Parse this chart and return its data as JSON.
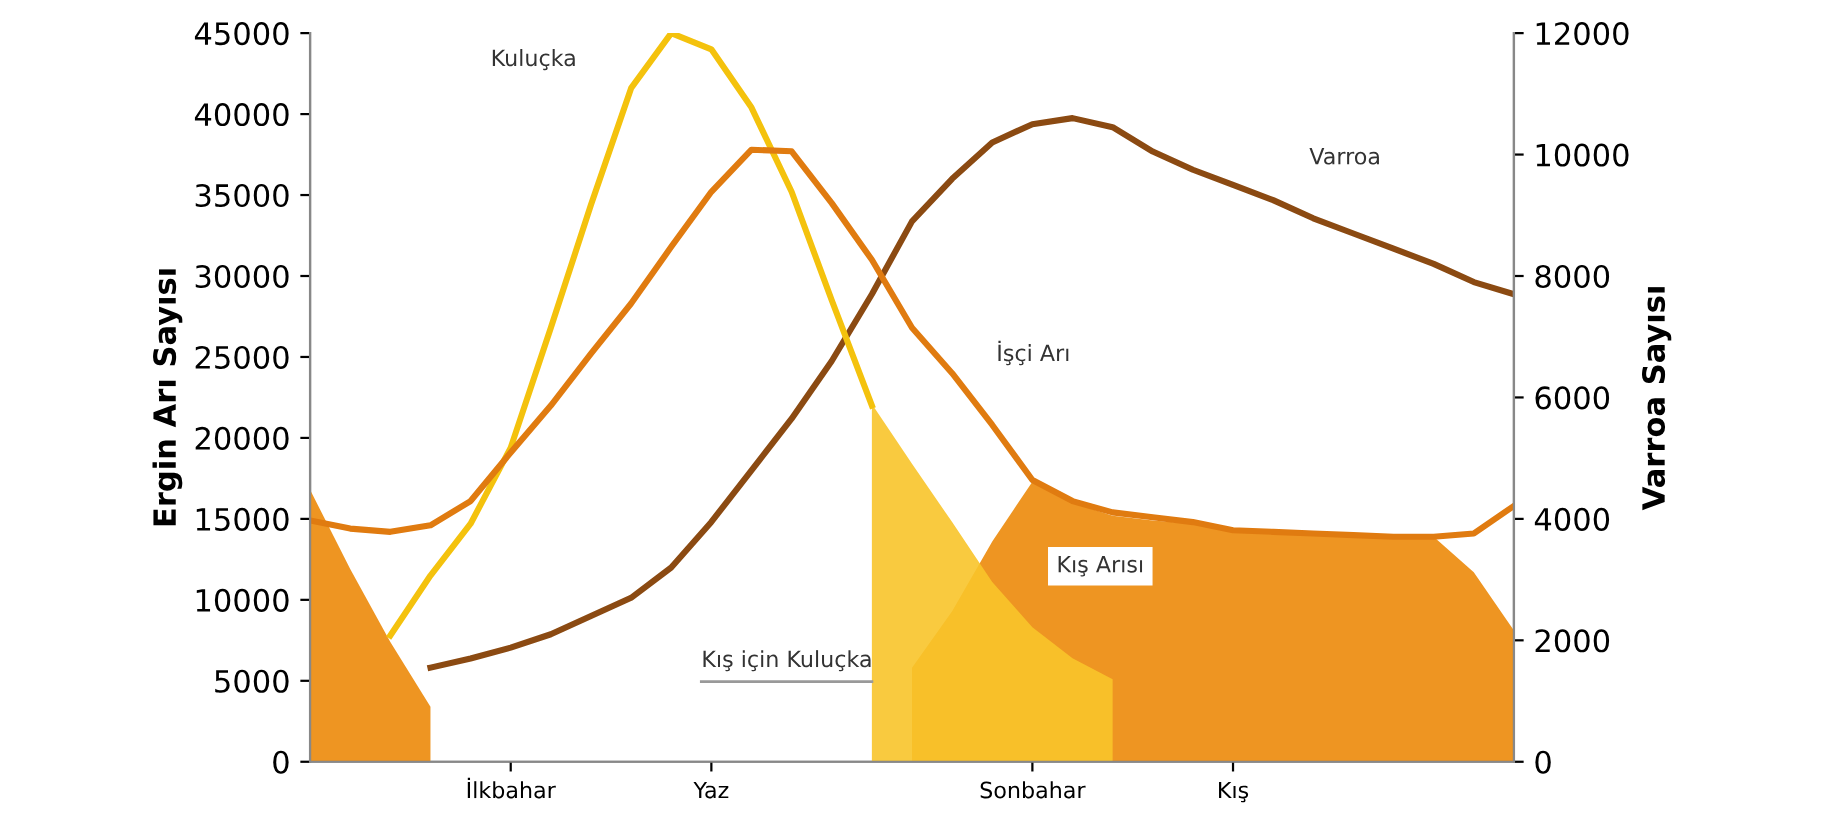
{
  "chart_data": {
    "type": "line",
    "ylabel": "Ergin Arı Sayısı",
    "y2label": "Varroa Sayısı",
    "categories": [
      null,
      null,
      null,
      null,
      null,
      "İlkbahar",
      null,
      null,
      null,
      null,
      "Yaz",
      null,
      null,
      null,
      null,
      null,
      null,
      null,
      "Sonbahar",
      null,
      null,
      null,
      null,
      "Kış",
      null,
      null,
      null,
      null,
      null,
      null,
      null
    ],
    "ylim": [
      0,
      45000
    ],
    "yticks": [
      0,
      5000,
      10000,
      15000,
      20000,
      25000,
      30000,
      35000,
      40000,
      45000
    ],
    "y2lim": [
      0,
      12000
    ],
    "y2ticks": [
      0,
      2000,
      4000,
      6000,
      8000,
      10000,
      12000
    ],
    "series": [
      {
        "name": "Kış Arısı",
        "type": "area",
        "color": "#ec8a0a",
        "values": [
          16800,
          11900,
          7400,
          3400,
          null,
          null,
          null,
          null,
          null,
          null,
          null,
          null,
          null,
          null,
          null,
          5800,
          9300,
          13600,
          17300,
          16000,
          15200,
          14900,
          14700,
          14300,
          14200,
          14100,
          14000,
          13900,
          13900,
          11700,
          8100
        ]
      },
      {
        "name": "Kış için Kuluçka",
        "type": "area",
        "color": "#f8c42a",
        "values": [
          null,
          null,
          null,
          null,
          null,
          null,
          null,
          null,
          null,
          null,
          null,
          null,
          null,
          null,
          22100,
          18400,
          14800,
          11100,
          8300,
          6400,
          5100,
          null,
          null,
          null,
          null,
          null,
          null,
          null,
          null,
          null,
          null
        ]
      },
      {
        "name": "Kuluçka",
        "color": "#f4c20d",
        "values": [
          null,
          null,
          7800,
          11500,
          14700,
          19400,
          26800,
          34400,
          41600,
          45000,
          44000,
          40400,
          35200,
          28500,
          22000,
          null,
          null,
          null,
          null,
          null,
          null,
          null,
          null,
          null,
          null,
          null,
          null,
          null,
          null,
          null,
          null
        ]
      },
      {
        "name": "İşçi Arı",
        "color": "#e07b10",
        "values": [
          14900,
          14400,
          14200,
          14600,
          16100,
          19100,
          22000,
          25200,
          28300,
          31800,
          35200,
          37800,
          37700,
          34500,
          31000,
          26800,
          24000,
          20800,
          17400,
          16100,
          15400,
          15100,
          14800,
          14300,
          14200,
          14100,
          14000,
          13900,
          13900,
          14100,
          15800
        ]
      },
      {
        "name": "Varroa",
        "axis": "y2",
        "color": "#8b4a12",
        "values": [
          null,
          null,
          null,
          1550,
          1700,
          1880,
          2100,
          2400,
          2700,
          3200,
          3950,
          4800,
          5650,
          6600,
          7700,
          8900,
          9600,
          10200,
          10500,
          10600,
          10450,
          10050,
          9750,
          9500,
          9250,
          8950,
          8700,
          8450,
          8200,
          7900,
          7700
        ]
      }
    ]
  }
}
